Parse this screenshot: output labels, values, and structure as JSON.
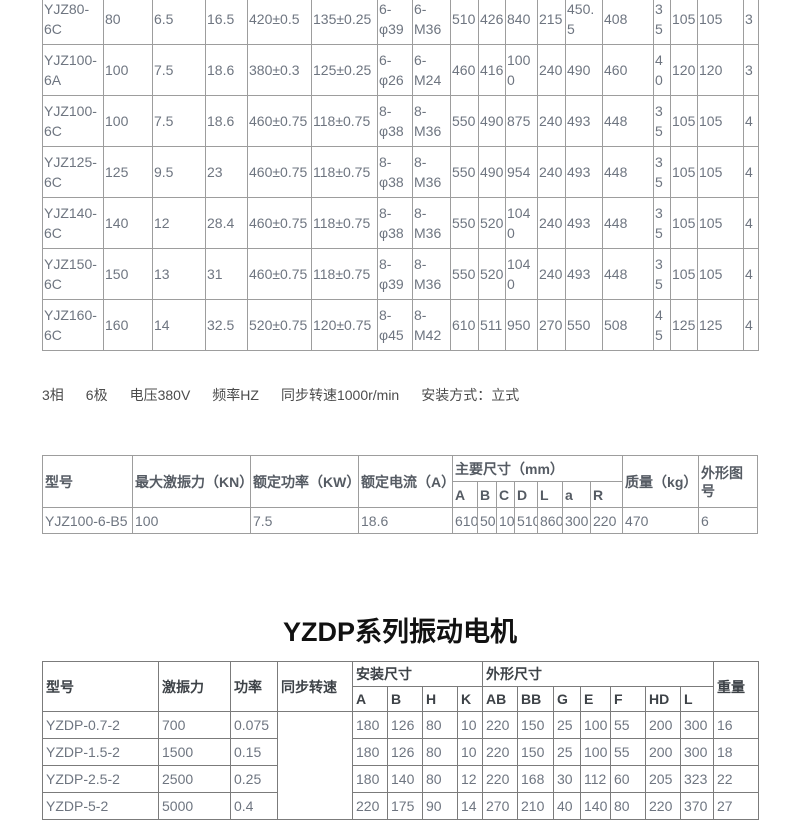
{
  "spec_table": {
    "rows": [
      [
        "YJZ80-6C",
        "80",
        "6.5",
        "16.5",
        "420±0.5",
        "135±0.25",
        "6-φ39",
        "6-M36",
        "510",
        "426",
        "840",
        "215",
        "450.5",
        "408",
        "35",
        "105",
        "105",
        "3"
      ],
      [
        "YJZ100-6A",
        "100",
        "7.5",
        "18.6",
        "380±0.3",
        "125±0.25",
        "6-φ26",
        "6-M24",
        "460",
        "416",
        "1000",
        "240",
        "490",
        "460",
        "40",
        "120",
        "120",
        "3"
      ],
      [
        "YJZ100-6C",
        "100",
        "7.5",
        "18.6",
        "460±0.75",
        "118±0.75",
        "8-φ38",
        "8-M36",
        "550",
        "490",
        "875",
        "240",
        "493",
        "448",
        "35",
        "105",
        "105",
        "4"
      ],
      [
        "YJZ125-6C",
        "125",
        "9.5",
        "23",
        "460±0.75",
        "118±0.75",
        "8-φ38",
        "8-M36",
        "550",
        "490",
        "954",
        "240",
        "493",
        "448",
        "35",
        "105",
        "105",
        "4"
      ],
      [
        "YJZ140-6C",
        "140",
        "12",
        "28.4",
        "460±0.75",
        "118±0.75",
        "8-φ38",
        "8-M36",
        "550",
        "520",
        "1040",
        "240",
        "493",
        "448",
        "35",
        "105",
        "105",
        "4"
      ],
      [
        "YJZ150-6C",
        "150",
        "13",
        "31",
        "460±0.75",
        "118±0.75",
        "8-φ39",
        "8-M36",
        "550",
        "520",
        "1040",
        "240",
        "493",
        "448",
        "35",
        "105",
        "105",
        "4"
      ],
      [
        "YJZ160-6C",
        "160",
        "14",
        "32.5",
        "520±0.75",
        "120±0.75",
        "8-φ45",
        "8-M42",
        "610",
        "511",
        "950",
        "270",
        "550",
        "508",
        "45",
        "125",
        "125",
        "4"
      ]
    ]
  },
  "spec_note": [
    "3相",
    "6极",
    "电压380V",
    "频率HZ",
    "同步转速1000r/min",
    "安装方式：立式"
  ],
  "summary_table": {
    "headers": {
      "model": "型号",
      "max_force": "最大激振力（KN）",
      "power": "额定功率（KW）",
      "current": "额定电流（A）",
      "dims": "主要尺寸（mm）",
      "dim_cols": [
        "A",
        "B",
        "C",
        "D",
        "L",
        "a",
        "R"
      ],
      "weight": "质量（kg）",
      "drawing": "外形图号"
    },
    "rows": [
      [
        "YJZ100-6-B5",
        "100",
        "7.5",
        "18.6",
        "610",
        "50",
        "10",
        "510",
        "860",
        "300",
        "220",
        "470",
        "6"
      ]
    ]
  },
  "section_title": "YZDP系列振动电机",
  "yzdp_table": {
    "headers": {
      "model": "型号",
      "force": "激振力",
      "power": "功率",
      "speed": "同步转速",
      "mount": "安装尺寸",
      "mount_cols": [
        "A",
        "B",
        "H",
        "K"
      ],
      "outline": "外形尺寸",
      "outline_cols": [
        "AB",
        "BB",
        "G",
        "E",
        "F",
        "HD",
        "L"
      ],
      "weight": "重量"
    },
    "speed_value": "",
    "rows": [
      [
        "YZDP-0.7-2",
        "700",
        "0.075",
        "180",
        "126",
        "80",
        "10",
        "220",
        "150",
        "25",
        "100",
        "55",
        "200",
        "300",
        "16"
      ],
      [
        "YZDP-1.5-2",
        "1500",
        "0.15",
        "180",
        "126",
        "80",
        "10",
        "220",
        "150",
        "25",
        "100",
        "55",
        "200",
        "300",
        "18"
      ],
      [
        "YZDP-2.5-2",
        "2500",
        "0.25",
        "180",
        "140",
        "80",
        "12",
        "220",
        "168",
        "30",
        "112",
        "60",
        "205",
        "323",
        "22"
      ],
      [
        "YZDP-5-2",
        "5000",
        "0.4",
        "220",
        "175",
        "90",
        "14",
        "270",
        "210",
        "40",
        "140",
        "80",
        "220",
        "370",
        "27"
      ]
    ]
  }
}
